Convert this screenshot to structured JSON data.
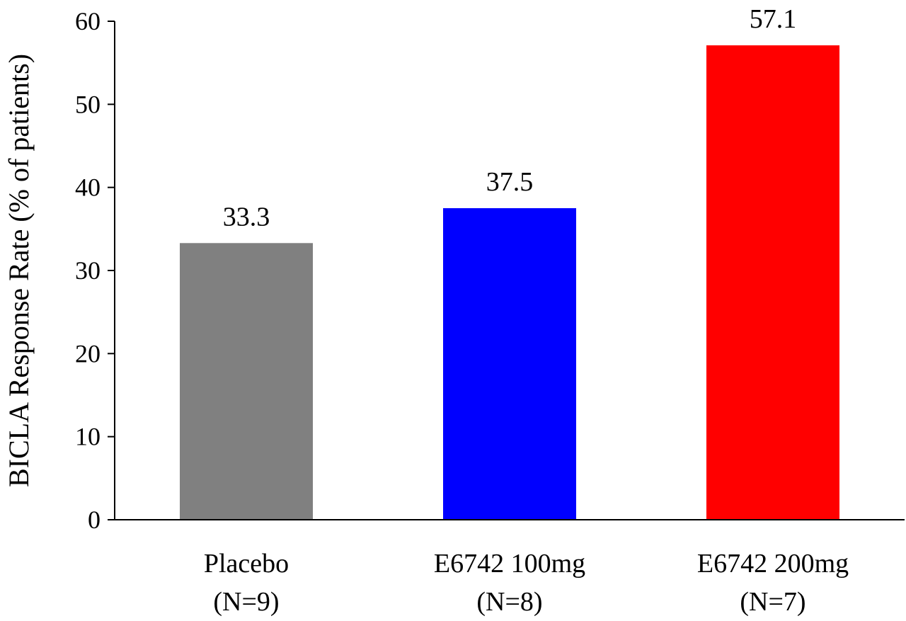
{
  "chart_data": {
    "type": "bar",
    "categories": [
      [
        "Placebo",
        "(N=9)"
      ],
      [
        "E6742 100mg",
        "(N=8)"
      ],
      [
        "E6742 200mg",
        "(N=7)"
      ]
    ],
    "values": [
      33.3,
      37.5,
      57.1
    ],
    "value_labels": [
      "33.3",
      "37.5",
      "57.1"
    ],
    "colors": [
      "#808080",
      "#0000ff",
      "#ff0000"
    ],
    "title": "",
    "xlabel": "",
    "ylabel": "BICLA Response Rate (% of patients)",
    "ylim": [
      0,
      60
    ],
    "yticks": [
      0,
      10,
      20,
      30,
      40,
      50,
      60
    ],
    "grid": false,
    "legend": "none"
  }
}
